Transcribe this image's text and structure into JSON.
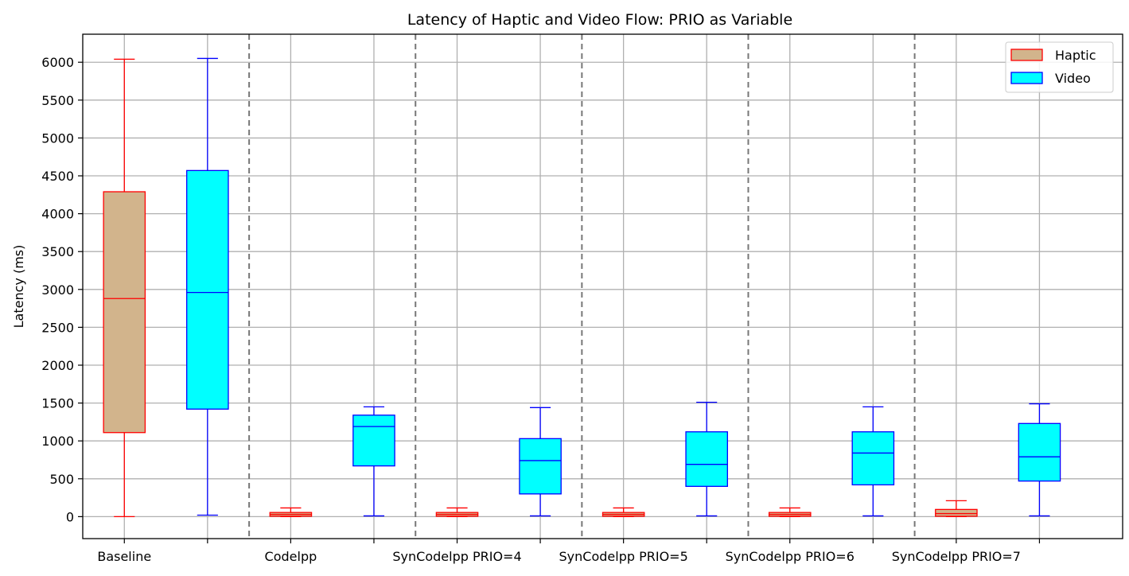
{
  "chart_data": {
    "type": "box",
    "title": "Latency of Haptic and Video Flow: PRIO as Variable",
    "xlabel": "",
    "ylabel": "Latency (ms)",
    "ylim": [
      -290,
      6370
    ],
    "yticks": [
      0,
      500,
      1000,
      1500,
      2000,
      2500,
      3000,
      3500,
      4000,
      4500,
      5000,
      5500,
      6000
    ],
    "categories": [
      "Baseline",
      "Codelpp",
      "SynCodelpp PRIO=4",
      "SynCodelpp PRIO=5",
      "SynCodelpp PRIO=6",
      "SynCodelpp PRIO=7"
    ],
    "grid": true,
    "group_separators": "dashed",
    "legend": {
      "position": "top-right",
      "entries": [
        "Haptic",
        "Video"
      ]
    },
    "series": [
      {
        "name": "Haptic",
        "fill": "#d2b48c",
        "edge": "#ff0000",
        "boxes": [
          {
            "min": 0,
            "q1": 1110,
            "median": 2880,
            "q3": 4290,
            "max": 6040
          },
          {
            "min": 0,
            "q1": 5,
            "median": 30,
            "q3": 55,
            "max": 115
          },
          {
            "min": 0,
            "q1": 5,
            "median": 30,
            "q3": 55,
            "max": 115
          },
          {
            "min": 0,
            "q1": 5,
            "median": 30,
            "q3": 55,
            "max": 115
          },
          {
            "min": 0,
            "q1": 5,
            "median": 30,
            "q3": 55,
            "max": 115
          },
          {
            "min": 0,
            "q1": 5,
            "median": 40,
            "q3": 95,
            "max": 210
          }
        ]
      },
      {
        "name": "Video",
        "fill": "#00ffff",
        "edge": "#0000ff",
        "boxes": [
          {
            "min": 20,
            "q1": 1420,
            "median": 2960,
            "q3": 4570,
            "max": 6050
          },
          {
            "min": 10,
            "q1": 670,
            "median": 1190,
            "q3": 1340,
            "max": 1450
          },
          {
            "min": 10,
            "q1": 300,
            "median": 740,
            "q3": 1030,
            "max": 1440
          },
          {
            "min": 10,
            "q1": 400,
            "median": 690,
            "q3": 1120,
            "max": 1510
          },
          {
            "min": 10,
            "q1": 420,
            "median": 840,
            "q3": 1120,
            "max": 1450
          },
          {
            "min": 10,
            "q1": 470,
            "median": 790,
            "q3": 1230,
            "max": 1490
          }
        ]
      }
    ]
  }
}
